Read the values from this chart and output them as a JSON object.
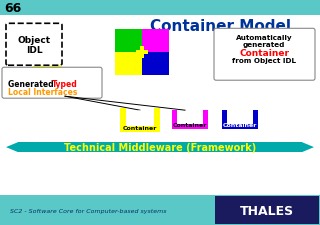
{
  "slide_num": "66",
  "title": "Container Model",
  "bg_color": "#f0f0f0",
  "header_bar_color": "#5bc8c8",
  "header_text_color": "#003399",
  "footer_bar_color": "#5bc8c8",
  "footer_text": "SC2 - Software Core for Computer-based systems",
  "footer_text_color": "#003366",
  "thales_bg": "#1a1a5e",
  "thales_text": "THALES",
  "middleware_text": "Technical Middleware (Framework)",
  "middleware_text_color": "#ffff00",
  "cyan_arrow": "#00aaaa",
  "object_idl_text": "Object\nIDL",
  "container_label": "Container",
  "yellow": "#ffff00",
  "green": "#00cc00",
  "magenta": "#ff00ff",
  "blue": "#0000cc",
  "orange": "#ff9900",
  "white": "#ffffff",
  "red": "#ff0000",
  "black": "#000000",
  "gray": "#888888"
}
